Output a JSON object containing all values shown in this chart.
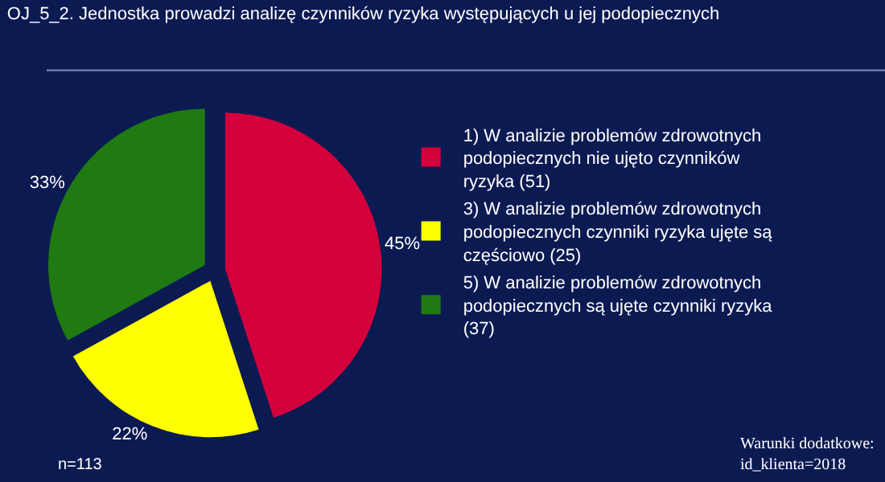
{
  "chart_data": {
    "type": "pie",
    "title": "OJ_5_2. Jednostka prowadzi analizę czynników ryzyka występujących u jej podopiecznych",
    "categories": [
      "1) W analizie problemów zdrowotnych podopiecznych nie ujęto czynników ryzyka (51)",
      "3) W analizie problemów zdrowotnych podopiecznych czynniki ryzyka ujęte są częściowo (25)",
      "5) W analizie problemów zdrowotnych podopiecznych są ujęte czynniki ryzyka (37)"
    ],
    "values": [
      45,
      22,
      33
    ],
    "value_labels": [
      "45%",
      "22%",
      "33%"
    ],
    "colors": [
      "#d4003c",
      "#ffff00",
      "#1f7a12"
    ],
    "legend": "right",
    "annotations": [
      "n=113",
      "Warunki dodatkowe:\nid_klienta=2018"
    ]
  }
}
